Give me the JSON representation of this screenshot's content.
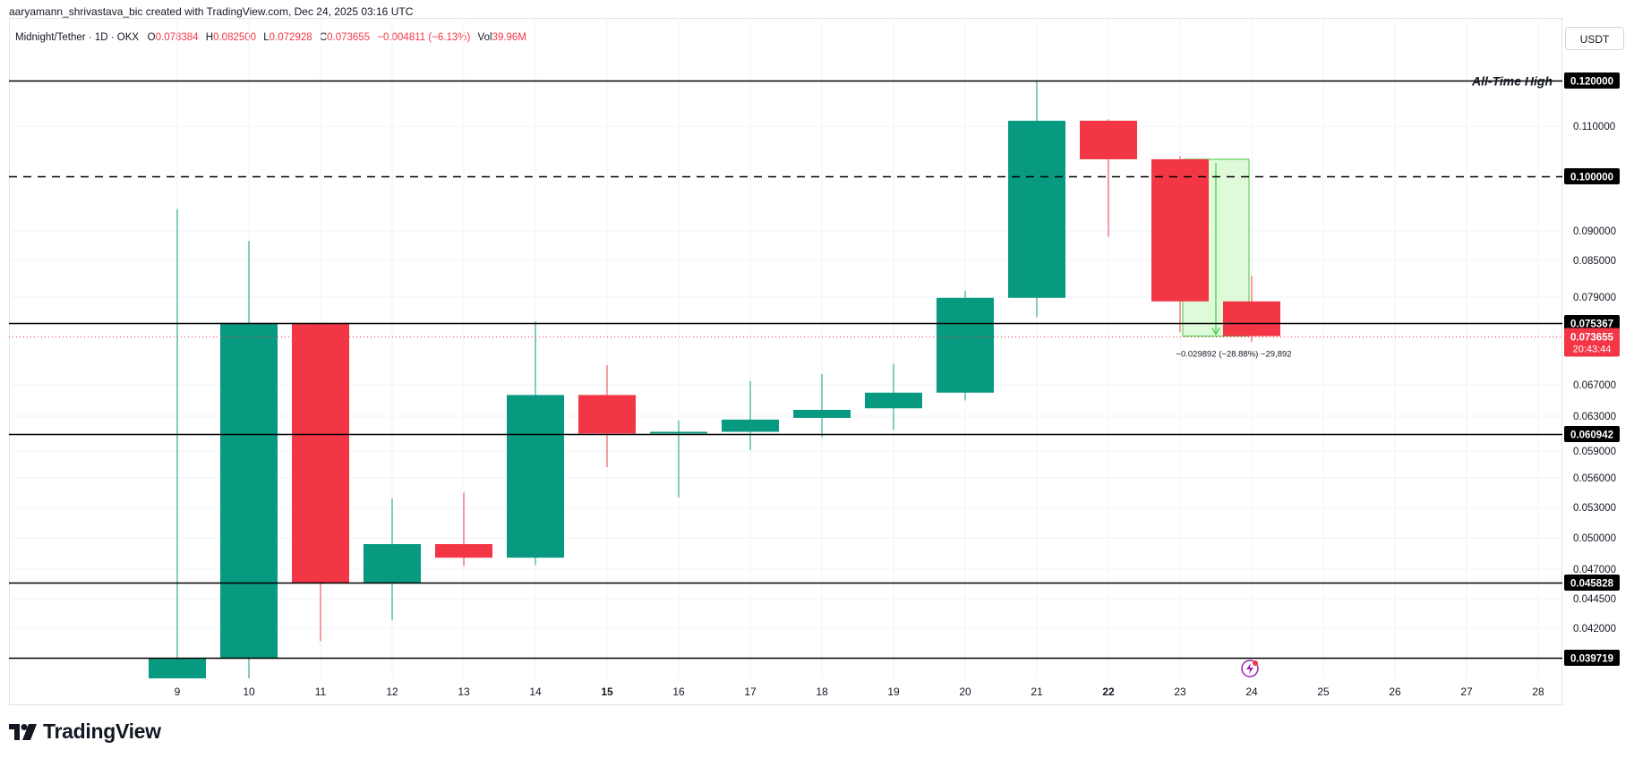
{
  "header": {
    "credit": "aaryamann_shrivastava_bic created with TradingView.com, Dec 24, 2025 03:16 UTC",
    "symbol": "Midnight/Tether · 1D · OKX",
    "ohlc": [
      {
        "label": "O",
        "value": "0.078384"
      },
      {
        "label": "H",
        "value": "0.082500"
      },
      {
        "label": "L",
        "value": "0.072928"
      },
      {
        "label": "C",
        "value": "0.073655"
      },
      {
        "label": "",
        "value": "−0.004811 (−6.13%)"
      },
      {
        "label": "Vol",
        "value": "39.96M"
      }
    ],
    "currency": "USDT"
  },
  "branding": {
    "logo_text": "TradingView"
  },
  "colors": {
    "up": "#089981",
    "down": "#f23645",
    "price_line": "#f23645",
    "measure_fill": "#c8f7c0",
    "measure_line": "#43c943"
  },
  "chart_data": {
    "type": "candlestick",
    "timeframe": "1D",
    "exchange": "OKX",
    "pair": "Midnight/Tether",
    "x_ticks": [
      "9",
      "10",
      "11",
      "12",
      "13",
      "14",
      "15",
      "16",
      "17",
      "18",
      "19",
      "20",
      "21",
      "22",
      "23",
      "24",
      "25",
      "26",
      "27",
      "28"
    ],
    "bold_x_ticks": [
      "15",
      "22"
    ],
    "y_ticks": [
      "0.110000",
      "0.090000",
      "0.085000",
      "0.079000",
      "0.067000",
      "0.063000",
      "0.059000",
      "0.056000",
      "0.053000",
      "0.050000",
      "0.047000",
      "0.044500",
      "0.042000"
    ],
    "candles": [
      {
        "date": "9",
        "open": 0.038,
        "high": 0.094,
        "low": 0.038,
        "close": 0.0397
      },
      {
        "date": "10",
        "open": 0.0397,
        "high": 0.0883,
        "low": 0.0388,
        "close": 0.0754
      },
      {
        "date": "11",
        "open": 0.0754,
        "high": 0.0754,
        "low": 0.041,
        "close": 0.0458
      },
      {
        "date": "12",
        "open": 0.0458,
        "high": 0.0539,
        "low": 0.0427,
        "close": 0.0494
      },
      {
        "date": "13",
        "open": 0.0494,
        "high": 0.0545,
        "low": 0.0473,
        "close": 0.0481
      },
      {
        "date": "14",
        "open": 0.0481,
        "high": 0.0756,
        "low": 0.0474,
        "close": 0.0657
      },
      {
        "date": "15",
        "open": 0.0657,
        "high": 0.0697,
        "low": 0.0572,
        "close": 0.061
      },
      {
        "date": "16",
        "open": 0.061,
        "high": 0.0625,
        "low": 0.054,
        "close": 0.0612
      },
      {
        "date": "17",
        "open": 0.0612,
        "high": 0.0675,
        "low": 0.0591,
        "close": 0.0626
      },
      {
        "date": "18",
        "open": 0.0628,
        "high": 0.0685,
        "low": 0.0606,
        "close": 0.0638
      },
      {
        "date": "19",
        "open": 0.064,
        "high": 0.0699,
        "low": 0.0614,
        "close": 0.066
      },
      {
        "date": "20",
        "open": 0.066,
        "high": 0.08,
        "low": 0.065,
        "close": 0.0789
      },
      {
        "date": "21",
        "open": 0.0789,
        "high": 0.12,
        "low": 0.0762,
        "close": 0.1112
      },
      {
        "date": "22",
        "open": 0.1112,
        "high": 0.1115,
        "low": 0.089,
        "close": 0.1034
      },
      {
        "date": "23",
        "open": 0.1034,
        "high": 0.104,
        "low": 0.0742,
        "close": 0.0784
      },
      {
        "date": "24",
        "open": 0.0784,
        "high": 0.0825,
        "low": 0.0729,
        "close": 0.0737
      }
    ],
    "levels": [
      {
        "value": 0.12,
        "label": "0.120000",
        "style": "solid",
        "annotation": "All-Time High"
      },
      {
        "value": 0.1,
        "label": "0.100000",
        "style": "dashed"
      },
      {
        "value": 0.075367,
        "label": "0.075367",
        "style": "solid"
      },
      {
        "value": 0.060942,
        "label": "0.060942",
        "style": "solid"
      },
      {
        "value": 0.045828,
        "label": "0.045828",
        "style": "solid"
      },
      {
        "value": 0.039719,
        "label": "0.039719",
        "style": "solid"
      }
    ],
    "current_price": {
      "value": 0.073655,
      "label": "0.073655",
      "countdown": "20:43:44"
    },
    "measure": {
      "from_date": "23",
      "to_date": "24",
      "top": 0.1034,
      "bottom": 0.0737,
      "label": "−0.029892 (−28.88%) −29,892"
    },
    "grid": true
  }
}
